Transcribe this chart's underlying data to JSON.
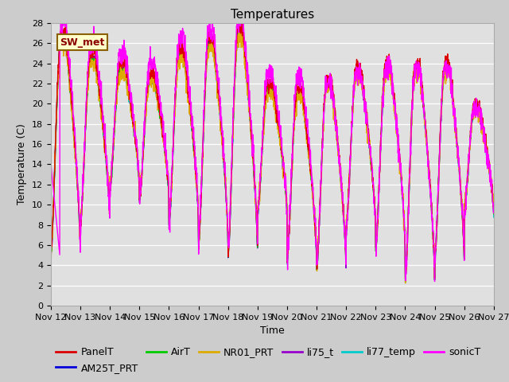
{
  "title": "Temperatures",
  "xlabel": "Time",
  "ylabel": "Temperature (C)",
  "ylim": [
    0,
    28
  ],
  "x_tick_labels": [
    "Nov 12",
    "Nov 13",
    "Nov 14",
    "Nov 15",
    "Nov 16",
    "Nov 17",
    "Nov 18",
    "Nov 19",
    "Nov 20",
    "Nov 21",
    "Nov 22",
    "Nov 23",
    "Nov 24",
    "Nov 25",
    "Nov 26",
    "Nov 27"
  ],
  "series": {
    "PanelT": {
      "color": "#dd0000",
      "lw": 1.0
    },
    "AM25T_PRT": {
      "color": "#0000dd",
      "lw": 1.0
    },
    "AirT": {
      "color": "#00cc00",
      "lw": 1.0
    },
    "NR01_PRT": {
      "color": "#ddaa00",
      "lw": 1.0
    },
    "li75_t": {
      "color": "#9900cc",
      "lw": 1.0
    },
    "li77_temp": {
      "color": "#00cccc",
      "lw": 1.0
    },
    "sonicT": {
      "color": "#ff00ff",
      "lw": 1.0
    }
  },
  "legend_labels": [
    "PanelT",
    "AM25T_PRT",
    "AirT",
    "NR01_PRT",
    "li75_t",
    "li77_temp",
    "sonicT"
  ],
  "annotation_text": "SW_met",
  "bg_color": "#cccccc",
  "plot_bg_color": "#e0e0e0",
  "n_points": 2160,
  "days": 15,
  "title_fontsize": 11,
  "axis_fontsize": 9,
  "tick_fontsize": 8,
  "legend_fontsize": 9
}
